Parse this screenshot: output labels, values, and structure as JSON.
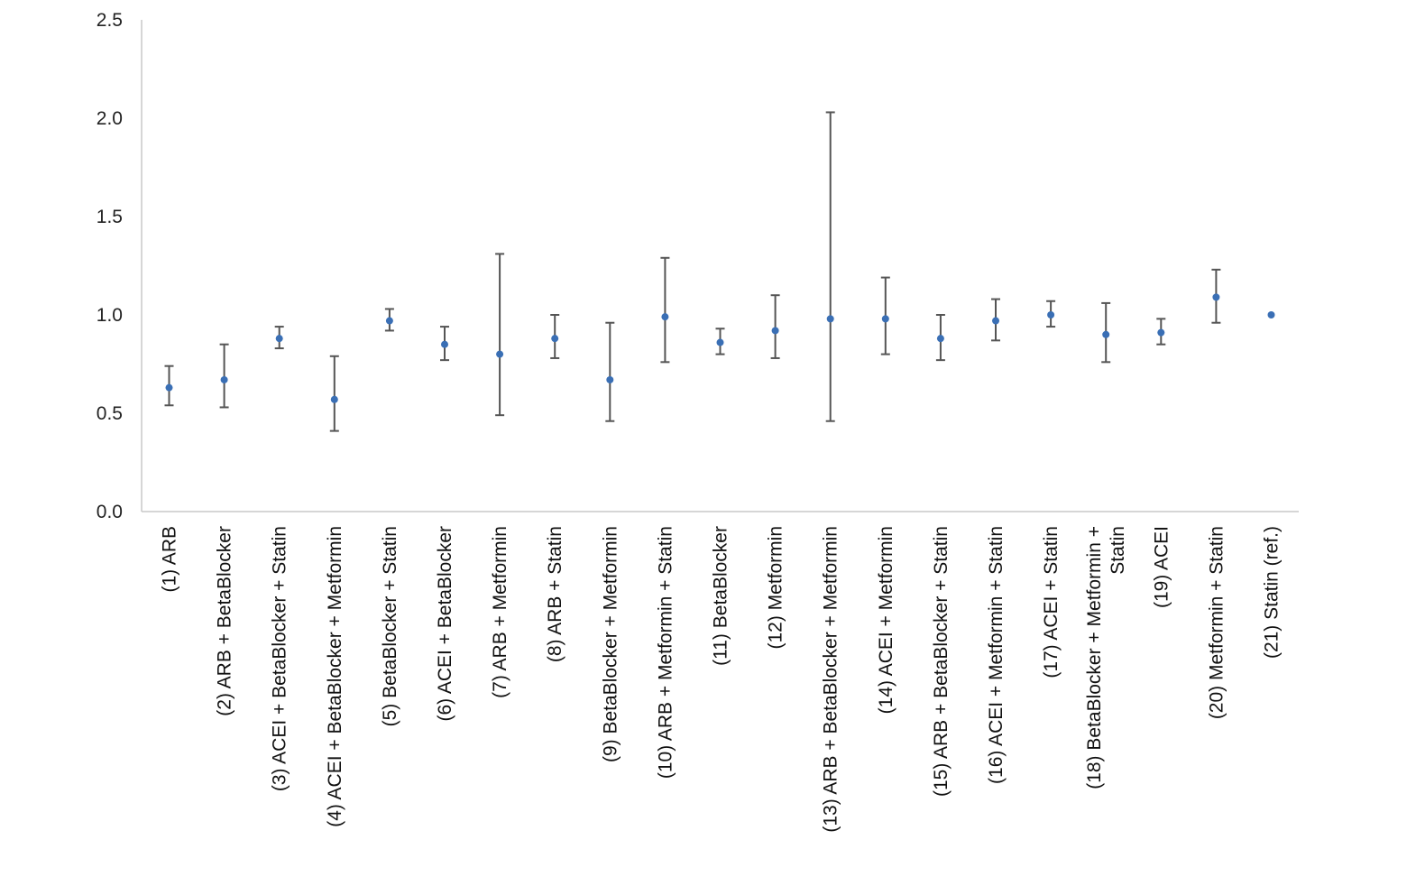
{
  "chart_data": {
    "type": "scatter",
    "title": "",
    "xlabel": "",
    "ylabel": "",
    "ylim": [
      0,
      2.5
    ],
    "yticks": [
      "0.0",
      "0.5",
      "1.0",
      "1.5",
      "2.0",
      "2.5"
    ],
    "grid": false,
    "legend": "none",
    "marker_color": "#3a6fb5",
    "errorbar_color": "#555555",
    "axis_color": "#c8c8c8",
    "categories": [
      [
        "(1) ARB"
      ],
      [
        "(2) ARB + BetaBlocker"
      ],
      [
        "(3) ACEI + BetaBlocker + Statin"
      ],
      [
        "(4) ACEI + BetaBlocker + Metformin"
      ],
      [
        "(5) BetaBlocker + Statin"
      ],
      [
        "(6) ACEI + BetaBlocker"
      ],
      [
        "(7) ARB + Metformin"
      ],
      [
        "(8) ARB + Statin"
      ],
      [
        "(9) BetaBlocker + Metformin"
      ],
      [
        "(10) ARB + Metformin + Statin"
      ],
      [
        "(11) BetaBlocker"
      ],
      [
        "(12) Metformin"
      ],
      [
        "(13) ARB + BetaBlocker + Metformin"
      ],
      [
        "(14) ACEI + Metformin"
      ],
      [
        "(15) ARB + BetaBlocker + Statin"
      ],
      [
        "(16) ACEI + Metformin + Statin"
      ],
      [
        "(17) ACEI + Statin"
      ],
      [
        "(18) BetaBlocker + Metformin +",
        "Statin"
      ],
      [
        "(19) ACEI"
      ],
      [
        "(20) Metformin + Statin"
      ],
      [
        "(21) Statin (ref.)"
      ]
    ],
    "values": [
      0.63,
      0.67,
      0.88,
      0.57,
      0.97,
      0.85,
      0.8,
      0.88,
      0.67,
      0.99,
      0.86,
      0.92,
      0.98,
      0.98,
      0.88,
      0.97,
      1.0,
      0.9,
      0.91,
      1.09,
      1.0
    ],
    "lower": [
      0.54,
      0.53,
      0.83,
      0.41,
      0.92,
      0.77,
      0.49,
      0.78,
      0.46,
      0.76,
      0.8,
      0.78,
      0.46,
      0.8,
      0.77,
      0.87,
      0.94,
      0.76,
      0.85,
      0.96,
      null
    ],
    "upper": [
      0.74,
      0.85,
      0.94,
      0.79,
      1.03,
      0.94,
      1.31,
      1.0,
      0.96,
      1.29,
      0.93,
      1.1,
      2.03,
      1.19,
      1.0,
      1.08,
      1.07,
      1.06,
      0.98,
      1.23,
      null
    ]
  }
}
